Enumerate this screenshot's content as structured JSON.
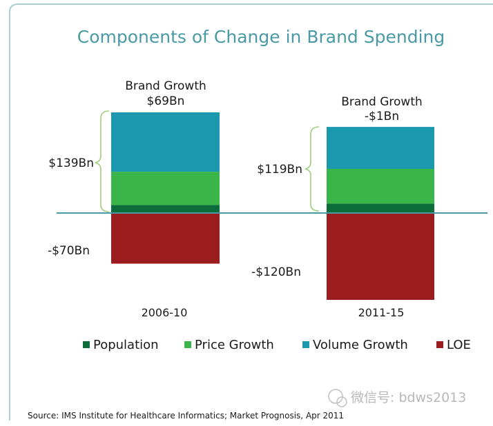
{
  "chart_data": {
    "type": "bar",
    "title": "Components of Change in Brand Spending",
    "categories": [
      "2006-10",
      "2011-15"
    ],
    "stacked": true,
    "unit": "$Bn",
    "series": [
      {
        "name": "Population",
        "color": "#0b6e3a",
        "values": [
          11,
          13
        ]
      },
      {
        "name": "Price Growth",
        "color": "#39b54a",
        "values": [
          46,
          48
        ]
      },
      {
        "name": "Volume Growth",
        "color": "#1b98ad",
        "values": [
          82,
          58
        ]
      },
      {
        "name": "LOE",
        "color": "#9b1c1f",
        "values": [
          -70,
          -120
        ]
      }
    ],
    "growth_labels": [
      {
        "label": "Brand Growth",
        "value": "$69Bn"
      },
      {
        "label": "Brand Growth",
        "value": "-$1Bn"
      }
    ],
    "positive_totals": [
      "$139Bn",
      "$119Bn"
    ],
    "negative_totals": [
      "-$70Bn",
      "-$120Bn"
    ],
    "legend_position": "bottom",
    "grid": false,
    "ylim": [
      -125,
      145
    ]
  },
  "source": "Source: IMS Institute for Healthcare Informatics; Market Prognosis, Apr 2011",
  "watermark": "微信号: bdws2013"
}
